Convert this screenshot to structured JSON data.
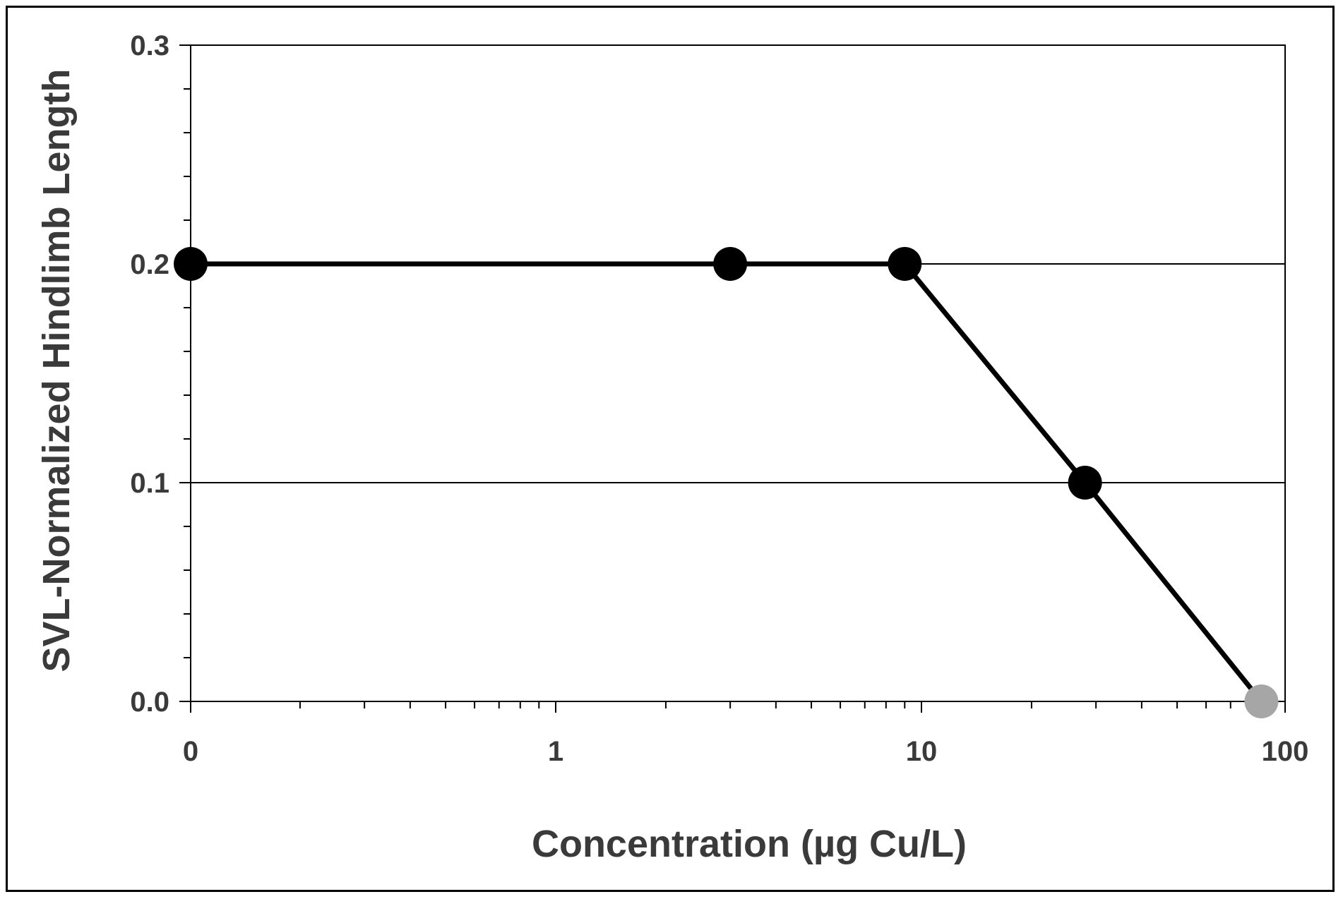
{
  "chart_data": {
    "type": "line",
    "title": "",
    "xlabel": "Concentration (µg Cu/L)",
    "ylabel": "SVL-Normalized Hindlimb Length",
    "x_scale": "log",
    "x_tick_labels": [
      "0",
      "1",
      "10",
      "100"
    ],
    "y_tick_labels": [
      "0.0",
      "0.1",
      "0.2",
      "0.3"
    ],
    "ylim": [
      0.0,
      0.3
    ],
    "grid": "horizontal",
    "legend": "none",
    "series": [
      {
        "x": [
          "0",
          3,
          9,
          28,
          85
        ],
        "y": [
          0.2,
          0.2,
          0.2,
          0.1,
          0.0
        ],
        "marker_colors": [
          "#000000",
          "#000000",
          "#000000",
          "#000000",
          "#a6a6a6"
        ]
      }
    ],
    "line_color": "#000000"
  }
}
